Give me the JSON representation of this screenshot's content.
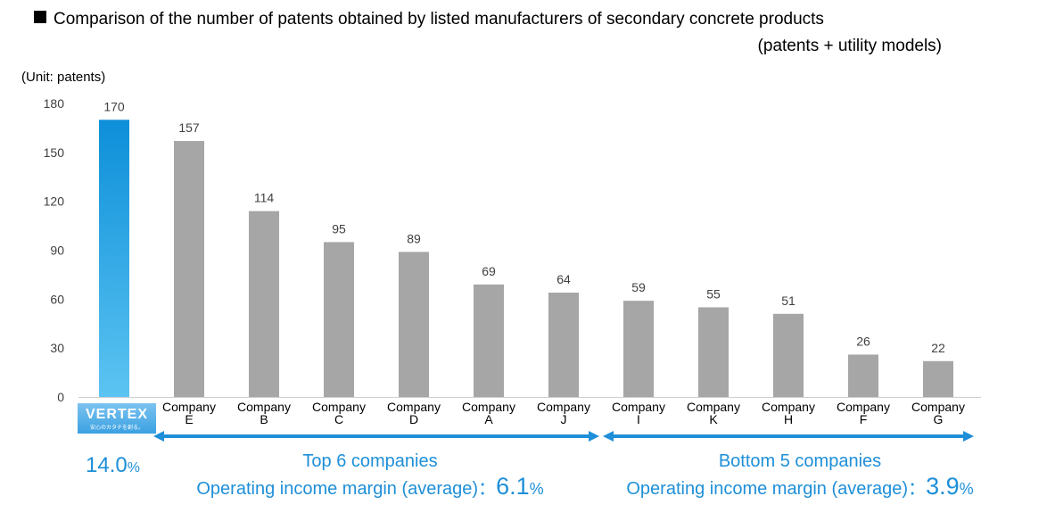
{
  "title": "Comparison of the number of patents obtained by listed manufacturers of secondary concrete products",
  "subtitle": "(patents + utility models)",
  "unit_label": "(Unit: patents)",
  "colors": {
    "highlight_bar": "#1f9ee0",
    "bar": "#a6a6a6",
    "accent_text": "#1e8fd8",
    "arrow": "#1e8fd8"
  },
  "chart_data": {
    "type": "bar",
    "categories": [
      "VERTEX",
      "Company E",
      "Company B",
      "Company C",
      "Company D",
      "Company A",
      "Company J",
      "Company I",
      "Company K",
      "Company H",
      "Company F",
      "Company G"
    ],
    "category_label_lines": [
      [
        "",
        ""
      ],
      [
        "Company",
        "E"
      ],
      [
        "Company",
        "B"
      ],
      [
        "Company",
        "C"
      ],
      [
        "Company",
        "D"
      ],
      [
        "Company",
        "A"
      ],
      [
        "Company",
        "J"
      ],
      [
        "Company",
        "I"
      ],
      [
        "Company",
        "K"
      ],
      [
        "Company",
        "H"
      ],
      [
        "Company",
        "F"
      ],
      [
        "Company",
        "G"
      ]
    ],
    "values": [
      170,
      157,
      114,
      95,
      89,
      69,
      64,
      59,
      55,
      51,
      26,
      22
    ],
    "highlight_index": 0,
    "ylim": [
      0,
      180
    ],
    "yticks": [
      0,
      30,
      60,
      90,
      120,
      150,
      180
    ],
    "grid": false,
    "data_labels": true
  },
  "vertex": {
    "logo_text": "VERTEX",
    "logo_tagline": "安心のカタチを創る。",
    "margin_value": "14.0",
    "margin_unit": "%"
  },
  "groups": [
    {
      "label": "Top 6 companies",
      "margin_prefix": "Operating income margin (average)：",
      "margin_value": "6.1",
      "margin_unit": "%",
      "first_index": 1,
      "last_index": 6
    },
    {
      "label": "Bottom 5 companies",
      "margin_prefix": "Operating income margin (average)：",
      "margin_value": "3.9",
      "margin_unit": "%",
      "first_index": 7,
      "last_index": 11
    }
  ]
}
